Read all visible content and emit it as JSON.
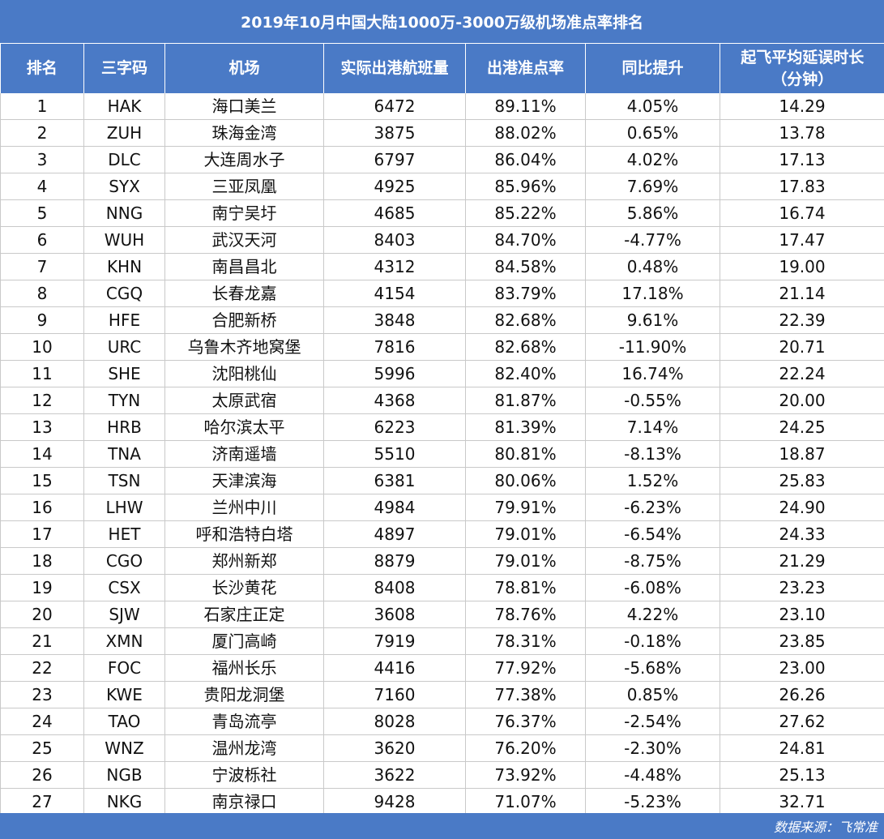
{
  "title": "2019年10月中国大陆1000万-3000万级机场准点率排名",
  "headers": {
    "rank": "排名",
    "code": "三字码",
    "airport": "机场",
    "flights": "实际出港航班量",
    "punctuality": "出港准点率",
    "yoy": "同比提升",
    "delay_line1": "起飞平均延误时长",
    "delay_line2": "（分钟）"
  },
  "rows": [
    {
      "rank": "1",
      "code": "HAK",
      "airport": "海口美兰",
      "flights": "6472",
      "punctuality": "89.11%",
      "yoy": "4.05%",
      "delay": "14.29"
    },
    {
      "rank": "2",
      "code": "ZUH",
      "airport": "珠海金湾",
      "flights": "3875",
      "punctuality": "88.02%",
      "yoy": "0.65%",
      "delay": "13.78"
    },
    {
      "rank": "3",
      "code": "DLC",
      "airport": "大连周水子",
      "flights": "6797",
      "punctuality": "86.04%",
      "yoy": "4.02%",
      "delay": "17.13"
    },
    {
      "rank": "4",
      "code": "SYX",
      "airport": "三亚凤凰",
      "flights": "4925",
      "punctuality": "85.96%",
      "yoy": "7.69%",
      "delay": "17.83"
    },
    {
      "rank": "5",
      "code": "NNG",
      "airport": "南宁吴圩",
      "flights": "4685",
      "punctuality": "85.22%",
      "yoy": "5.86%",
      "delay": "16.74"
    },
    {
      "rank": "6",
      "code": "WUH",
      "airport": "武汉天河",
      "flights": "8403",
      "punctuality": "84.70%",
      "yoy": "-4.77%",
      "delay": "17.47"
    },
    {
      "rank": "7",
      "code": "KHN",
      "airport": "南昌昌北",
      "flights": "4312",
      "punctuality": "84.58%",
      "yoy": "0.48%",
      "delay": "19.00"
    },
    {
      "rank": "8",
      "code": "CGQ",
      "airport": "长春龙嘉",
      "flights": "4154",
      "punctuality": "83.79%",
      "yoy": "17.18%",
      "delay": "21.14"
    },
    {
      "rank": "9",
      "code": "HFE",
      "airport": "合肥新桥",
      "flights": "3848",
      "punctuality": "82.68%",
      "yoy": "9.61%",
      "delay": "22.39"
    },
    {
      "rank": "10",
      "code": "URC",
      "airport": "乌鲁木齐地窝堡",
      "flights": "7816",
      "punctuality": "82.68%",
      "yoy": "-11.90%",
      "delay": "20.71"
    },
    {
      "rank": "11",
      "code": "SHE",
      "airport": "沈阳桃仙",
      "flights": "5996",
      "punctuality": "82.40%",
      "yoy": "16.74%",
      "delay": "22.24"
    },
    {
      "rank": "12",
      "code": "TYN",
      "airport": "太原武宿",
      "flights": "4368",
      "punctuality": "81.87%",
      "yoy": "-0.55%",
      "delay": "20.00"
    },
    {
      "rank": "13",
      "code": "HRB",
      "airport": "哈尔滨太平",
      "flights": "6223",
      "punctuality": "81.39%",
      "yoy": "7.14%",
      "delay": "24.25"
    },
    {
      "rank": "14",
      "code": "TNA",
      "airport": "济南遥墙",
      "flights": "5510",
      "punctuality": "80.81%",
      "yoy": "-8.13%",
      "delay": "18.87"
    },
    {
      "rank": "15",
      "code": "TSN",
      "airport": "天津滨海",
      "flights": "6381",
      "punctuality": "80.06%",
      "yoy": "1.52%",
      "delay": "25.83"
    },
    {
      "rank": "16",
      "code": "LHW",
      "airport": "兰州中川",
      "flights": "4984",
      "punctuality": "79.91%",
      "yoy": "-6.23%",
      "delay": "24.90"
    },
    {
      "rank": "17",
      "code": "HET",
      "airport": "呼和浩特白塔",
      "flights": "4897",
      "punctuality": "79.01%",
      "yoy": "-6.54%",
      "delay": "24.33"
    },
    {
      "rank": "18",
      "code": "CGO",
      "airport": "郑州新郑",
      "flights": "8879",
      "punctuality": "79.01%",
      "yoy": "-8.75%",
      "delay": "21.29"
    },
    {
      "rank": "19",
      "code": "CSX",
      "airport": "长沙黄花",
      "flights": "8408",
      "punctuality": "78.81%",
      "yoy": "-6.08%",
      "delay": "23.23"
    },
    {
      "rank": "20",
      "code": "SJW",
      "airport": "石家庄正定",
      "flights": "3608",
      "punctuality": "78.76%",
      "yoy": "4.22%",
      "delay": "23.10"
    },
    {
      "rank": "21",
      "code": "XMN",
      "airport": "厦门高崎",
      "flights": "7919",
      "punctuality": "78.31%",
      "yoy": "-0.18%",
      "delay": "23.85"
    },
    {
      "rank": "22",
      "code": "FOC",
      "airport": "福州长乐",
      "flights": "4416",
      "punctuality": "77.92%",
      "yoy": "-5.68%",
      "delay": "23.00"
    },
    {
      "rank": "23",
      "code": "KWE",
      "airport": "贵阳龙洞堡",
      "flights": "7160",
      "punctuality": "77.38%",
      "yoy": "0.85%",
      "delay": "26.26"
    },
    {
      "rank": "24",
      "code": "TAO",
      "airport": "青岛流亭",
      "flights": "8028",
      "punctuality": "76.37%",
      "yoy": "-2.54%",
      "delay": "27.62"
    },
    {
      "rank": "25",
      "code": "WNZ",
      "airport": "温州龙湾",
      "flights": "3620",
      "punctuality": "76.20%",
      "yoy": "-2.30%",
      "delay": "24.81"
    },
    {
      "rank": "26",
      "code": "NGB",
      "airport": "宁波栎社",
      "flights": "3622",
      "punctuality": "73.92%",
      "yoy": "-4.48%",
      "delay": "25.13"
    },
    {
      "rank": "27",
      "code": "NKG",
      "airport": "南京禄口",
      "flights": "9428",
      "punctuality": "71.07%",
      "yoy": "-5.23%",
      "delay": "32.71"
    }
  ],
  "footer": "数据来源：飞常准",
  "colors": {
    "header_bg": "#4a7ac6",
    "header_text": "#ffffff",
    "grid": "#c9c9c9"
  }
}
